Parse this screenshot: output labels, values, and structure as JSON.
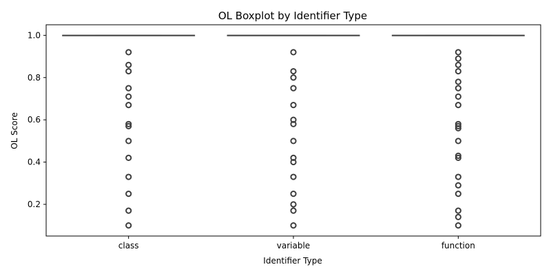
{
  "chart_data": {
    "type": "boxplot",
    "title": "OL Boxplot by Identifier Type",
    "xlabel": "Identifier Type",
    "ylabel": "OL Score",
    "ylim": [
      0.05,
      1.05
    ],
    "yticks": [
      "0.2",
      "0.4",
      "0.6",
      "0.8",
      "1.0"
    ],
    "grid": false,
    "legend": "none",
    "colors": {
      "box_line": "#3f3f3f",
      "outlier_edge": "#3f3f3f",
      "axis": "#000000"
    },
    "categories": [
      "class",
      "variable",
      "function"
    ],
    "boxes": [
      {
        "category": "class",
        "min": 1.0,
        "q1": 1.0,
        "median": 1.0,
        "q3": 1.0,
        "max": 1.0,
        "outliers": [
          0.92,
          0.86,
          0.83,
          0.75,
          0.71,
          0.67,
          0.58,
          0.57,
          0.5,
          0.42,
          0.33,
          0.25,
          0.17,
          0.1
        ]
      },
      {
        "category": "variable",
        "min": 1.0,
        "q1": 1.0,
        "median": 1.0,
        "q3": 1.0,
        "max": 1.0,
        "outliers": [
          0.92,
          0.83,
          0.8,
          0.75,
          0.67,
          0.6,
          0.58,
          0.5,
          0.42,
          0.4,
          0.33,
          0.25,
          0.2,
          0.17,
          0.1
        ]
      },
      {
        "category": "function",
        "min": 1.0,
        "q1": 1.0,
        "median": 1.0,
        "q3": 1.0,
        "max": 1.0,
        "outliers": [
          0.92,
          0.89,
          0.86,
          0.83,
          0.78,
          0.75,
          0.71,
          0.67,
          0.58,
          0.57,
          0.56,
          0.5,
          0.43,
          0.42,
          0.33,
          0.29,
          0.25,
          0.17,
          0.14,
          0.1
        ]
      }
    ]
  }
}
